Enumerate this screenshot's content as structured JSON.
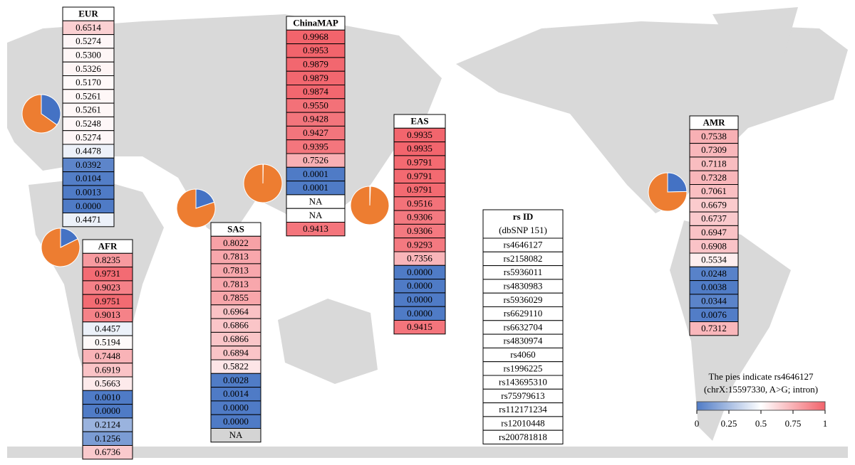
{
  "tables": [
    {
      "title": "EUR",
      "values": [
        "0.6514",
        "0.5274",
        "0.5300",
        "0.5326",
        "0.5170",
        "0.5261",
        "0.5261",
        "0.5248",
        "0.5274",
        "0.4478",
        "0.0392",
        "0.0104",
        "0.0013",
        "0.0000",
        "0.4471"
      ]
    },
    {
      "title": "AFR",
      "values": [
        "0.8235",
        "0.9731",
        "0.9023",
        "0.9751",
        "0.9013",
        "0.4457",
        "0.5194",
        "0.7448",
        "0.6919",
        "0.5663",
        "0.0010",
        "0.0000",
        "0.2124",
        "0.1256",
        "0.6736"
      ]
    },
    {
      "title": "SAS",
      "na_color": "#d4d4d4",
      "values": [
        "0.8022",
        "0.7813",
        "0.7813",
        "0.7813",
        "0.7855",
        "0.6964",
        "0.6866",
        "0.6866",
        "0.6894",
        "0.5822",
        "0.0028",
        "0.0014",
        "0.0000",
        "0.0000",
        "NA"
      ]
    },
    {
      "title": "ChinaMAP",
      "na_color": "#ffffff",
      "values": [
        "0.9968",
        "0.9953",
        "0.9879",
        "0.9879",
        "0.9874",
        "0.9550",
        "0.9428",
        "0.9427",
        "0.9395",
        "0.7526",
        "0.0001",
        "0.0001",
        "NA",
        "NA",
        "0.9413"
      ]
    },
    {
      "title": "EAS",
      "values": [
        "0.9935",
        "0.9935",
        "0.9791",
        "0.9791",
        "0.9791",
        "0.9516",
        "0.9306",
        "0.9306",
        "0.9293",
        "0.7356",
        "0.0000",
        "0.0000",
        "0.0000",
        "0.0000",
        "0.9415"
      ]
    },
    {
      "title": "AMR",
      "values": [
        "0.7538",
        "0.7309",
        "0.7118",
        "0.7328",
        "0.7061",
        "0.6679",
        "0.6737",
        "0.6947",
        "0.6908",
        "0.5534",
        "0.0248",
        "0.0038",
        "0.0344",
        "0.0076",
        "0.7312"
      ]
    }
  ],
  "rs_table": {
    "header": [
      "rs ID",
      "(dbSNP 151)"
    ],
    "rows": [
      "rs4646127",
      "rs2158082",
      "rs5936011",
      "rs4830983",
      "rs5936029",
      "rs6629110",
      "rs6632704",
      "rs4830974",
      "rs4060",
      "rs1996225",
      "rs143695310",
      "rs75979613",
      "rs112171234",
      "rs12010448",
      "rs200781818"
    ]
  },
  "legend": {
    "title": [
      "The pies indicate rs4646127",
      "(chrX:15597330, A>G; intron)"
    ],
    "ticks": [
      0,
      0.25,
      0.5,
      0.75,
      1
    ],
    "low_color": "#4f7bc6",
    "mid_color": "#ffffff",
    "high_color": "#f2636b"
  },
  "pie_colors": {
    "minor": "#4472c4",
    "major": "#ed7d31"
  }
}
